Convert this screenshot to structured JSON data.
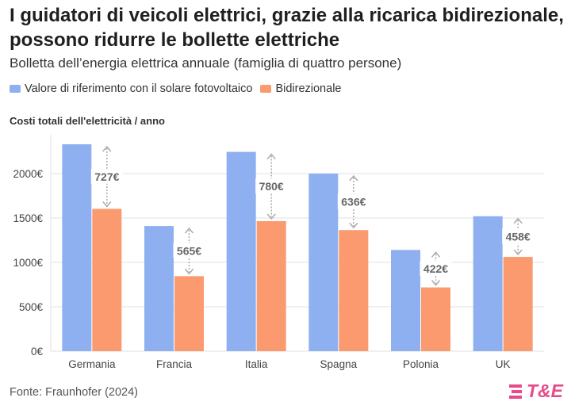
{
  "header": {
    "title": "I guidatori di veicoli elettrici, grazie alla ricarica bidirezionale, possono ridurre le bollette elettriche",
    "subtitle": "Bolletta dell’energia elettrica annuale (famiglia di quattro persone)"
  },
  "footer": {
    "source": "Fonte: Fraunhofer (2024)",
    "logo_text": "T&E"
  },
  "colors": {
    "reference": "#8fb0f0",
    "bidirectional": "#fa9a6e",
    "logo": "#e84a8a"
  },
  "chart_data": {
    "type": "bar",
    "title": "Costi totali dell'elettricità / anno",
    "categories": [
      "Germania",
      "Francia",
      "Italia",
      "Spagna",
      "Polonia",
      "UK"
    ],
    "series": [
      {
        "name": "Valore di riferimento con il solare fotovoltaico",
        "values": [
          2330,
          1410,
          2245,
          2000,
          1140,
          1520
        ]
      },
      {
        "name": "Bidirezionale",
        "values": [
          1603,
          845,
          1465,
          1364,
          718,
          1062
        ]
      }
    ],
    "differences": [
      "727€",
      "565€",
      "780€",
      "636€",
      "422€",
      "458€"
    ],
    "ylim": [
      0,
      2400
    ],
    "yticks": [
      0,
      500,
      1000,
      1500,
      2000
    ],
    "ytick_labels": [
      "0€",
      "500€",
      "1000€",
      "1500€",
      "2000€"
    ],
    "grid": true,
    "legend_position": "top-left"
  }
}
